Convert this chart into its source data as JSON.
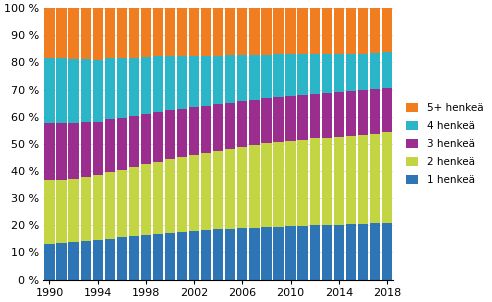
{
  "years": [
    1990,
    1991,
    1992,
    1993,
    1994,
    1995,
    1996,
    1997,
    1998,
    1999,
    2000,
    2001,
    2002,
    2003,
    2004,
    2005,
    2006,
    2007,
    2008,
    2009,
    2010,
    2011,
    2012,
    2013,
    2014,
    2015,
    2016,
    2017,
    2018
  ],
  "henk1": [
    13.0,
    13.3,
    13.7,
    14.1,
    14.5,
    15.0,
    15.5,
    16.0,
    16.4,
    16.9,
    17.3,
    17.6,
    17.9,
    18.2,
    18.5,
    18.7,
    18.9,
    19.1,
    19.3,
    19.5,
    19.6,
    19.8,
    20.0,
    20.1,
    20.2,
    20.3,
    20.5,
    20.7,
    21.0
  ],
  "henk2": [
    23.5,
    23.5,
    23.5,
    23.8,
    24.0,
    24.5,
    25.0,
    25.5,
    26.0,
    26.5,
    27.0,
    27.5,
    28.0,
    28.5,
    29.0,
    29.5,
    30.0,
    30.5,
    31.0,
    31.3,
    31.5,
    31.7,
    32.0,
    32.1,
    32.3,
    32.5,
    32.7,
    33.0,
    33.2
  ],
  "henk3": [
    21.0,
    21.0,
    20.5,
    20.0,
    19.5,
    19.5,
    19.0,
    18.8,
    18.5,
    18.3,
    18.0,
    17.8,
    17.5,
    17.3,
    17.0,
    17.0,
    16.8,
    16.7,
    16.5,
    16.5,
    16.5,
    16.5,
    16.5,
    16.5,
    16.5,
    16.5,
    16.5,
    16.5,
    16.5
  ],
  "henk4": [
    24.0,
    23.7,
    23.5,
    23.3,
    23.0,
    22.5,
    22.0,
    21.5,
    21.0,
    20.5,
    20.0,
    19.5,
    19.0,
    18.5,
    18.0,
    17.5,
    17.0,
    16.5,
    16.0,
    15.7,
    15.5,
    15.0,
    14.5,
    14.3,
    14.0,
    13.7,
    13.5,
    13.3,
    13.0
  ],
  "henk5p": [
    18.5,
    18.5,
    18.8,
    18.8,
    19.0,
    18.5,
    18.5,
    18.2,
    18.1,
    17.8,
    17.7,
    17.6,
    17.6,
    17.5,
    17.5,
    17.3,
    17.3,
    17.2,
    17.2,
    17.0,
    16.9,
    17.0,
    17.0,
    17.0,
    17.0,
    17.0,
    16.8,
    16.5,
    16.3
  ],
  "colors": {
    "henk1": "#2e75b6",
    "henk2": "#c4d544",
    "henk3": "#9b2d8e",
    "henk4": "#2ab5c8",
    "henk5p": "#f07e21"
  },
  "labels": [
    "1 henkeä",
    "2 henkeä",
    "3 henkeä",
    "4 henkeä",
    "5+ henkeä"
  ],
  "yticks": [
    0,
    10,
    20,
    30,
    40,
    50,
    60,
    70,
    80,
    90,
    100
  ],
  "xticks": [
    1990,
    1994,
    1998,
    2002,
    2006,
    2010,
    2014,
    2018
  ],
  "background_color": "#ffffff",
  "bar_width": 0.85,
  "xlim_left": 1989.5,
  "xlim_right": 2018.5
}
